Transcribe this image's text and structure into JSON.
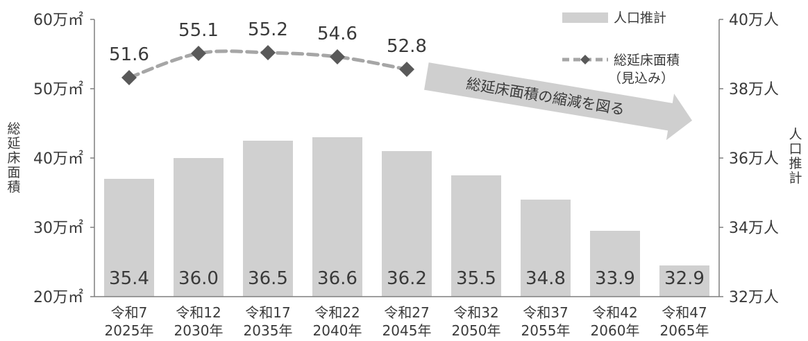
{
  "chart_data": {
    "type": "bar+line",
    "categories": [
      [
        "令和7",
        "2025年"
      ],
      [
        "令和12",
        "2030年"
      ],
      [
        "令和17",
        "2035年"
      ],
      [
        "令和22",
        "2040年"
      ],
      [
        "令和27",
        "2045年"
      ],
      [
        "令和32",
        "2050年"
      ],
      [
        "令和37",
        "2055年"
      ],
      [
        "令和42",
        "2060年"
      ],
      [
        "令和47",
        "2065年"
      ]
    ],
    "series": [
      {
        "name": "人口推計",
        "type": "bar",
        "axis": "right",
        "values": [
          35.4,
          36.0,
          36.5,
          36.6,
          36.2,
          35.5,
          34.8,
          33.9,
          32.9
        ],
        "color": "#d0d0d0"
      },
      {
        "name": "総延床面積",
        "name_line2": "（見込み）",
        "type": "line",
        "axis": "left",
        "values": [
          51.6,
          55.1,
          55.2,
          54.6,
          52.8,
          null,
          null,
          null,
          null
        ],
        "color": "#a6a6a6",
        "marker_color": "#595959",
        "dashed": true
      }
    ],
    "left_axis": {
      "label": "総延床面積",
      "range": [
        20,
        60
      ],
      "ticks": [
        "20万㎡",
        "30万㎡",
        "40万㎡",
        "50万㎡",
        "60万㎡"
      ],
      "tick_values": [
        20,
        30,
        40,
        50,
        60
      ]
    },
    "right_axis": {
      "label": "人口推計",
      "range": [
        32,
        40
      ],
      "ticks": [
        "32万人",
        "34万人",
        "36万人",
        "38万人",
        "40万人"
      ],
      "tick_values": [
        32,
        34,
        36,
        38,
        40
      ]
    },
    "annotation": "総延床面積の縮減を図る",
    "legend_position": "top-right",
    "grid": false
  }
}
